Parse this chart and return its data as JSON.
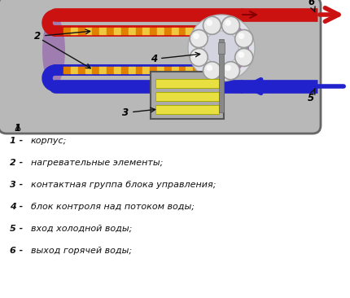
{
  "bg_color": "#b8b8b8",
  "fig_bg": "#d8d8d8",
  "white_bg": "#ffffff",
  "labels": [
    "1 - корпус;",
    "2 - нагревательные элементы;",
    "3 - контактная группа блока управления;",
    "4 - блок контроля над потоком воды;",
    "5 - вход холодной воды;",
    "6 - выход горячей воды;"
  ]
}
